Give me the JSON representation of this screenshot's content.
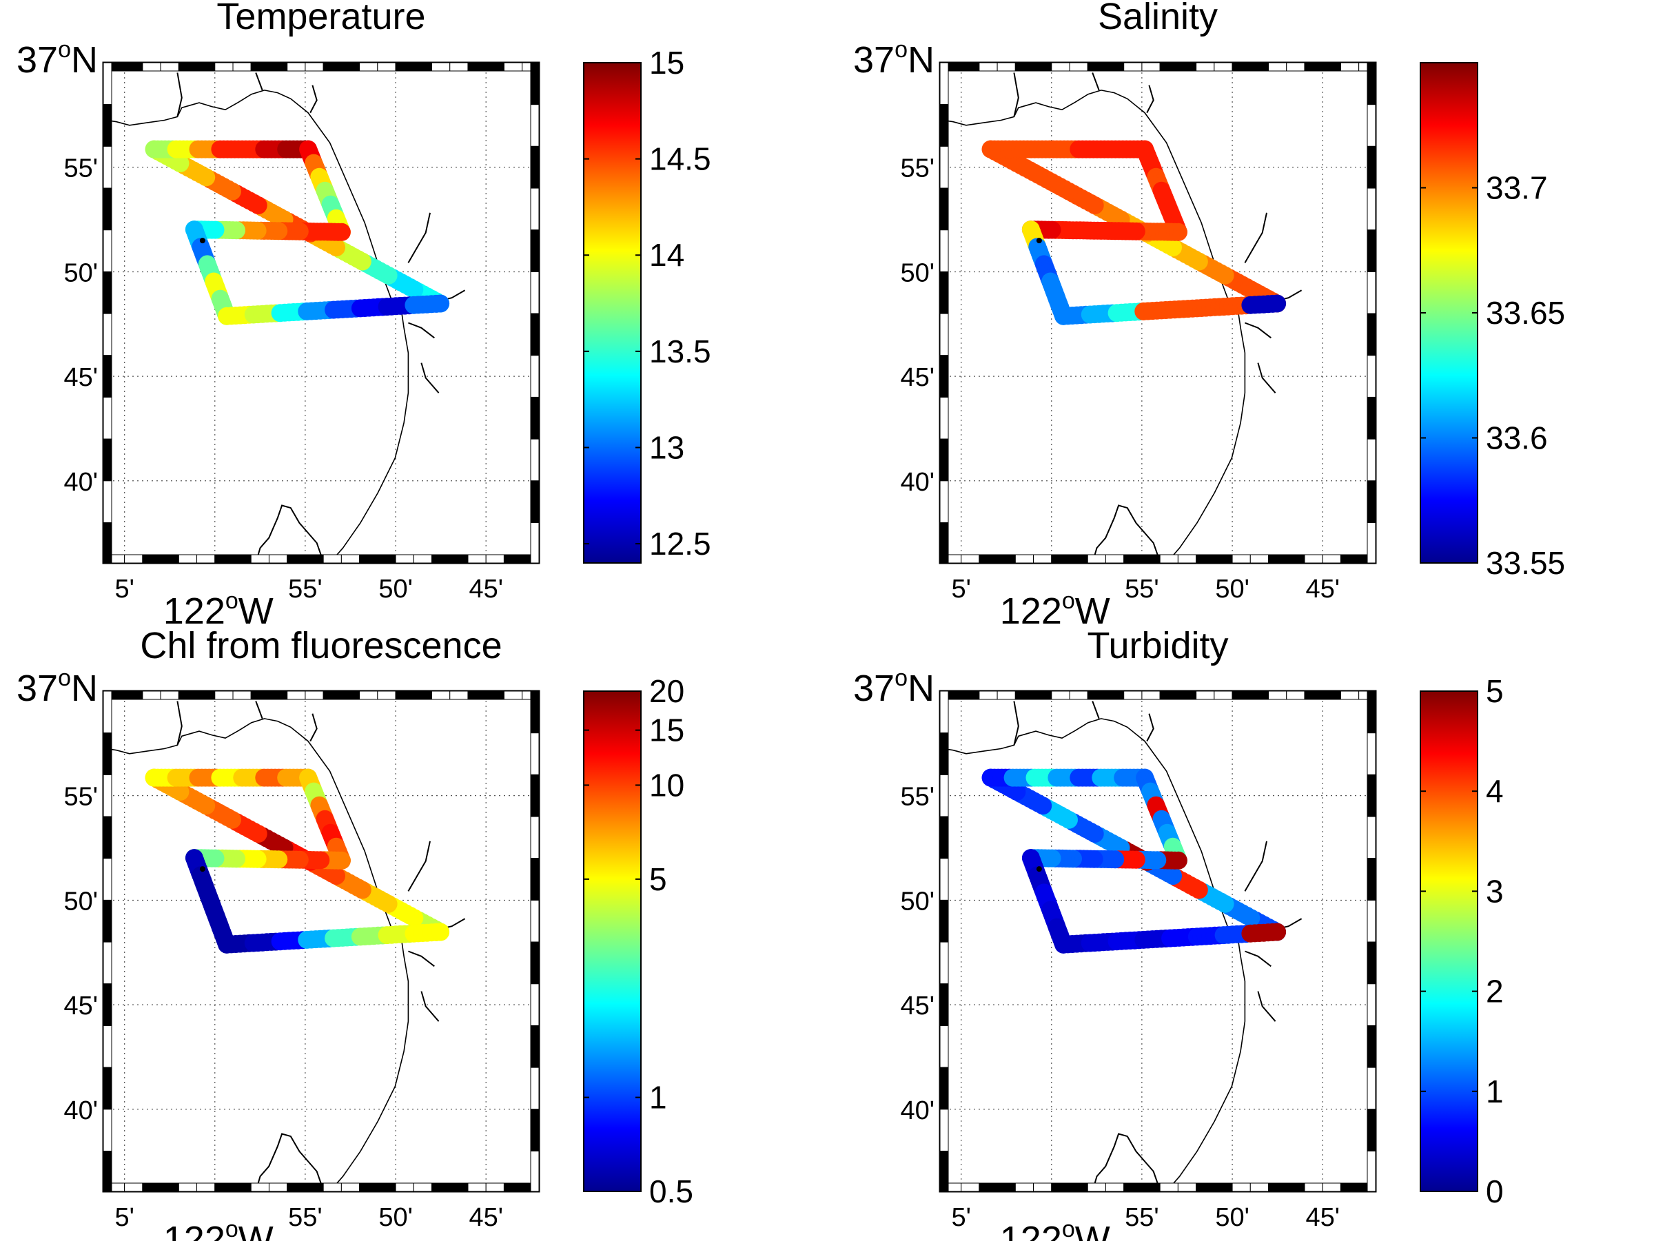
{
  "figure": {
    "colormap": "jet",
    "jet_stops": [
      "#00008f",
      "#0000ff",
      "#0080ff",
      "#00ffff",
      "#80ff80",
      "#ffff00",
      "#ff8000",
      "#ff0000",
      "#800000"
    ],
    "map_extent": {
      "lon_min": -122.1028,
      "lon_max": -121.7012,
      "lat_min": 36.6012,
      "lat_max": 37.0
    },
    "lat_labels": [
      {
        "lat": 37.0,
        "text": "37",
        "deg": "o",
        "hemi": "N",
        "major": true
      },
      {
        "lat": 36.9167,
        "text": "55'",
        "major": false
      },
      {
        "lat": 36.8333,
        "text": "50'",
        "major": false
      },
      {
        "lat": 36.75,
        "text": "45'",
        "major": false
      },
      {
        "lat": 36.6667,
        "text": "40'",
        "major": false
      }
    ],
    "lon_labels": [
      {
        "lon": -122.0833,
        "text": "5'",
        "major": false
      },
      {
        "lon": -122.0,
        "text": "122",
        "deg": "o",
        "hemi": "W",
        "major": true
      },
      {
        "lon": -121.9167,
        "text": "55'",
        "major": false
      },
      {
        "lon": -121.8333,
        "text": "50'",
        "major": false
      },
      {
        "lon": -121.75,
        "text": "45'",
        "major": false
      }
    ],
    "track_waypoints": [
      {
        "name": "harbor",
        "lon": -121.792,
        "lat": 36.808
      },
      {
        "name": "nw-corner",
        "lon": -122.056,
        "lat": 36.931
      },
      {
        "name": "ne-corner",
        "lon": -121.914,
        "lat": 36.931
      },
      {
        "name": "mid-east",
        "lon": -121.883,
        "lat": 36.865
      },
      {
        "name": "mid-west",
        "lon": -122.019,
        "lat": 36.867
      },
      {
        "name": "sw-corner",
        "lon": -121.989,
        "lat": 36.798
      },
      {
        "name": "harbor-end",
        "lon": -121.792,
        "lat": 36.808
      }
    ]
  },
  "chart_data": [
    {
      "type": "scatter",
      "title": "Temperature",
      "variable": "temperature",
      "colorbar": {
        "min": 12.4,
        "max": 15.0,
        "scale": "linear",
        "ticks": [
          {
            "value": 12.5,
            "label": "12.5"
          },
          {
            "value": 13,
            "label": "13"
          },
          {
            "value": 13.5,
            "label": "13.5"
          },
          {
            "value": 14,
            "label": "14"
          },
          {
            "value": 14.5,
            "label": "14.5"
          },
          {
            "value": 15,
            "label": "15"
          }
        ]
      },
      "segments": [
        {
          "from": "harbor",
          "to": "nw-corner",
          "values": [
            13.4,
            13.3,
            13.5,
            13.9,
            14.2,
            14.5,
            14.3,
            14.6,
            14.4,
            14.2,
            13.9
          ]
        },
        {
          "from": "nw-corner",
          "to": "ne-corner",
          "values": [
            13.8,
            14.0,
            14.3,
            14.6,
            14.6,
            14.8,
            14.9
          ]
        },
        {
          "from": "ne-corner",
          "to": "mid-east",
          "values": [
            14.7,
            14.4,
            14.1,
            13.8,
            13.6,
            14.0
          ]
        },
        {
          "from": "mid-east",
          "to": "mid-west",
          "values": [
            14.6,
            14.6,
            14.5,
            14.4,
            14.3,
            13.8,
            13.4
          ]
        },
        {
          "from": "mid-west",
          "to": "sw-corner",
          "values": [
            13.2,
            13.0,
            13.6,
            14.0,
            13.7
          ]
        },
        {
          "from": "sw-corner",
          "to": "harbor-end",
          "values": [
            14.0,
            13.9,
            13.4,
            13.1,
            12.9,
            12.7,
            12.6,
            13.0
          ]
        }
      ],
      "xlabel": "",
      "ylabel": ""
    },
    {
      "type": "scatter",
      "title": "Salinity",
      "variable": "salinity",
      "colorbar": {
        "min": 33.55,
        "max": 33.75,
        "scale": "linear",
        "ticks": [
          {
            "value": 33.55,
            "label": "33.55"
          },
          {
            "value": 33.6,
            "label": "33.6"
          },
          {
            "value": 33.65,
            "label": "33.65"
          },
          {
            "value": 33.7,
            "label": "33.7"
          }
        ]
      },
      "segments": [
        {
          "from": "harbor",
          "to": "nw-corner",
          "values": [
            33.71,
            33.71,
            33.7,
            33.69,
            33.68,
            33.69,
            33.7,
            33.71,
            33.71,
            33.71,
            33.71
          ]
        },
        {
          "from": "nw-corner",
          "to": "ne-corner",
          "values": [
            33.71,
            33.71,
            33.71,
            33.71,
            33.72,
            33.72,
            33.72
          ]
        },
        {
          "from": "ne-corner",
          "to": "mid-east",
          "values": [
            33.72,
            33.72,
            33.71,
            33.72,
            33.72,
            33.72
          ]
        },
        {
          "from": "mid-east",
          "to": "mid-west",
          "values": [
            33.71,
            33.71,
            33.72,
            33.72,
            33.72,
            33.72,
            33.73
          ]
        },
        {
          "from": "mid-west",
          "to": "sw-corner",
          "values": [
            33.68,
            33.6,
            33.59,
            33.6,
            33.6
          ]
        },
        {
          "from": "sw-corner",
          "to": "harbor-end",
          "values": [
            33.6,
            33.61,
            33.63,
            33.71,
            33.71,
            33.71,
            33.71,
            33.56
          ]
        }
      ],
      "xlabel": "",
      "ylabel": ""
    },
    {
      "type": "scatter",
      "title": "Chl from fluorescence",
      "variable": "chlorophyll",
      "colorbar": {
        "min": 0.5,
        "max": 20,
        "scale": "log",
        "ticks": [
          {
            "value": 0.5,
            "label": "0.5"
          },
          {
            "value": 1,
            "label": "1"
          },
          {
            "value": 5,
            "label": "5"
          },
          {
            "value": 10,
            "label": "10"
          },
          {
            "value": 15,
            "label": "15"
          },
          {
            "value": 20,
            "label": "20"
          }
        ]
      },
      "segments": [
        {
          "from": "harbor",
          "to": "nw-corner",
          "values": [
            4,
            5,
            6,
            8,
            10,
            12,
            17,
            11,
            9,
            8,
            7
          ]
        },
        {
          "from": "nw-corner",
          "to": "ne-corner",
          "values": [
            5,
            6,
            8,
            5,
            6,
            9,
            7
          ]
        },
        {
          "from": "ne-corner",
          "to": "mid-east",
          "values": [
            6,
            4,
            8,
            11,
            12,
            9
          ]
        },
        {
          "from": "mid-east",
          "to": "mid-west",
          "values": [
            8,
            11,
            10,
            6,
            5,
            4,
            3
          ]
        },
        {
          "from": "mid-west",
          "to": "sw-corner",
          "values": [
            0.6,
            0.55,
            0.55,
            0.55,
            0.55
          ]
        },
        {
          "from": "sw-corner",
          "to": "harbor-end",
          "values": [
            0.55,
            0.6,
            0.8,
            1.5,
            2.5,
            3.5,
            4.5,
            5
          ]
        }
      ],
      "xlabel": "",
      "ylabel": ""
    },
    {
      "type": "scatter",
      "title": "Turbidity",
      "variable": "turbidity",
      "colorbar": {
        "min": 0,
        "max": 5,
        "scale": "linear",
        "ticks": [
          {
            "value": 0,
            "label": "0"
          },
          {
            "value": 1,
            "label": "1"
          },
          {
            "value": 2,
            "label": "2"
          },
          {
            "value": 3,
            "label": "3"
          },
          {
            "value": 4,
            "label": "4"
          },
          {
            "value": 5,
            "label": "5"
          }
        ]
      },
      "segments": [
        {
          "from": "harbor",
          "to": "nw-corner",
          "values": [
            1.0,
            1.2,
            1.5,
            4.2,
            1.1,
            4.8,
            1.3,
            1.0,
            1.6,
            0.9,
            0.8
          ]
        },
        {
          "from": "nw-corner",
          "to": "ne-corner",
          "values": [
            0.7,
            1.3,
            2.0,
            1.4,
            0.9,
            1.5,
            1.2
          ]
        },
        {
          "from": "ne-corner",
          "to": "mid-east",
          "values": [
            1.1,
            1.3,
            4.5,
            1.2,
            1.4,
            2.3
          ]
        },
        {
          "from": "mid-east",
          "to": "mid-west",
          "values": [
            4.8,
            1.2,
            4.3,
            1.0,
            0.9,
            1.1,
            1.3
          ]
        },
        {
          "from": "mid-west",
          "to": "sw-corner",
          "values": [
            0.4,
            0.3,
            0.5,
            0.4,
            0.3
          ]
        },
        {
          "from": "sw-corner",
          "to": "harbor-end",
          "values": [
            0.3,
            0.4,
            0.5,
            0.4,
            0.6,
            0.7,
            0.9,
            4.8
          ]
        }
      ],
      "xlabel": "",
      "ylabel": ""
    }
  ]
}
